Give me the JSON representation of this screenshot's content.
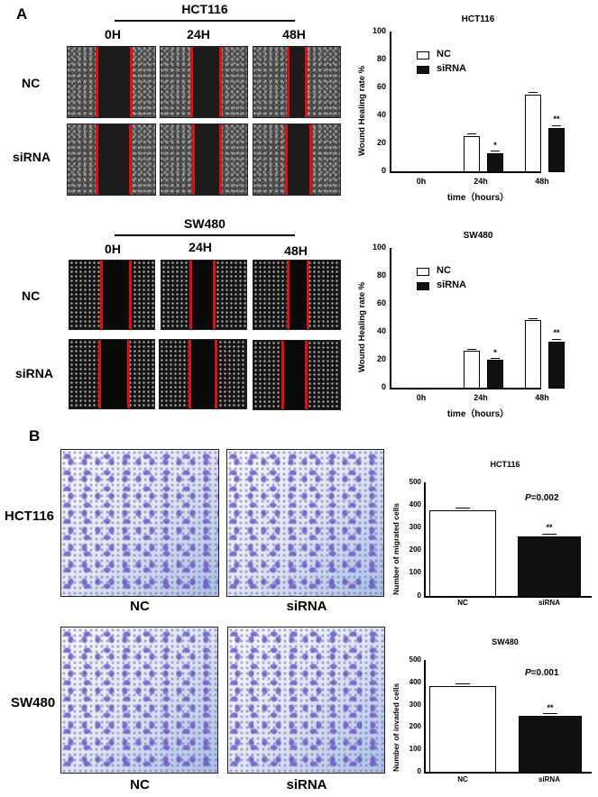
{
  "panel_a": {
    "letter": "A",
    "hct116": {
      "title": "HCT116",
      "time_headers": [
        "0H",
        "24H",
        "48H"
      ],
      "row_labels": [
        "NC",
        "siRNA"
      ]
    },
    "sw480": {
      "title": "SW480",
      "time_headers": [
        "0H",
        "24H",
        "48H"
      ],
      "row_labels": [
        "NC",
        "siRNA"
      ]
    }
  },
  "panel_b": {
    "letter": "B",
    "rows": [
      {
        "label": "HCT116",
        "captions": [
          "NC",
          "siRNA"
        ]
      },
      {
        "label": "SW480",
        "captions": [
          "NC",
          "siRNA"
        ]
      }
    ]
  },
  "chart_data": [
    {
      "type": "bar",
      "title": "HCT116",
      "xlabel": "time（hours）",
      "ylabel": "Wound Healing rate %",
      "ylim": [
        0,
        100
      ],
      "yticks": [
        "0",
        "20",
        "40",
        "60",
        "80",
        "100"
      ],
      "categories": [
        "0h",
        "24h",
        "48h"
      ],
      "legend": [
        "NC",
        "siRNA"
      ],
      "legend_position": "upper-left",
      "grid": false,
      "series": [
        {
          "name": "NC",
          "color": "#ffffff",
          "values": [
            0,
            25,
            55
          ],
          "errors": [
            0,
            2,
            2
          ]
        },
        {
          "name": "siRNA",
          "color": "#111111",
          "values": [
            0,
            13,
            31
          ],
          "errors": [
            0,
            2,
            2
          ]
        }
      ],
      "annotations": {
        "24h": "*",
        "48h": "**"
      }
    },
    {
      "type": "bar",
      "title": "SW480",
      "xlabel": "time（hours）",
      "ylabel": "Wound Healing rate %",
      "ylim": [
        0,
        100
      ],
      "yticks": [
        "0",
        "20",
        "40",
        "60",
        "80",
        "100"
      ],
      "categories": [
        "0h",
        "24h",
        "48h"
      ],
      "legend": [
        "NC",
        "siRNA"
      ],
      "legend_position": "upper-left",
      "grid": false,
      "series": [
        {
          "name": "NC",
          "color": "#ffffff",
          "values": [
            0,
            26,
            48
          ],
          "errors": [
            0,
            1,
            1
          ]
        },
        {
          "name": "siRNA",
          "color": "#111111",
          "values": [
            0,
            20,
            33
          ],
          "errors": [
            0,
            1,
            2
          ]
        }
      ],
      "annotations": {
        "24h": "*",
        "48h": "**"
      }
    },
    {
      "type": "bar",
      "title": "HCT116",
      "xlabel": "",
      "ylabel": "Number of migrated cells",
      "ylim": [
        0,
        500
      ],
      "yticks": [
        "0",
        "100",
        "200",
        "300",
        "400",
        "500"
      ],
      "categories": [
        "NC",
        "siRNA"
      ],
      "values": [
        378,
        260
      ],
      "errors": [
        12,
        10
      ],
      "colors": [
        "#ffffff",
        "#111111"
      ],
      "annotations": {
        "pvalue": "P=0.002",
        "siRNA": "**"
      },
      "grid": false
    },
    {
      "type": "bar",
      "title": "SW480",
      "xlabel": "",
      "ylabel": "Number of invaded cells",
      "ylim": [
        0,
        500
      ],
      "yticks": [
        "0",
        "100",
        "200",
        "300",
        "400",
        "500"
      ],
      "categories": [
        "NC",
        "siRNA"
      ],
      "values": [
        383,
        248
      ],
      "errors": [
        12,
        10
      ],
      "colors": [
        "#ffffff",
        "#111111"
      ],
      "annotations": {
        "pvalue": "P=0.001",
        "siRNA": "**"
      },
      "grid": false
    }
  ]
}
